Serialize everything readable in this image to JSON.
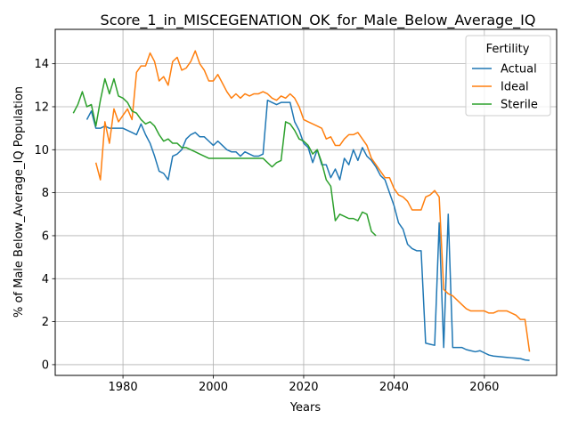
{
  "chart_data": {
    "type": "line",
    "title": "Score_1_in_MISCEGENATION_OK_for_Male_Below_Average_IQ",
    "xlabel": "Years",
    "ylabel": "% of Male Below_Average_IQ Population",
    "xlim": [
      1965,
      2076
    ],
    "ylim": [
      -0.5,
      15.6
    ],
    "xticks": [
      1980,
      2000,
      2020,
      2040,
      2060
    ],
    "yticks": [
      0,
      2,
      4,
      6,
      8,
      10,
      12,
      14
    ],
    "grid": true,
    "legend": {
      "title": "Fertility",
      "position": "top-right"
    },
    "series": [
      {
        "name": "Actual",
        "color": "#1f77b4",
        "x": [
          1972,
          1973,
          1974,
          1975,
          1976,
          1977,
          1978,
          1979,
          1980,
          1981,
          1982,
          1983,
          1984,
          1985,
          1986,
          1987,
          1988,
          1989,
          1990,
          1991,
          1992,
          1993,
          1994,
          1995,
          1996,
          1997,
          1998,
          1999,
          2000,
          2001,
          2002,
          2003,
          2004,
          2005,
          2006,
          2007,
          2008,
          2009,
          2010,
          2011,
          2012,
          2013,
          2014,
          2015,
          2016,
          2017,
          2018,
          2019,
          2020,
          2021,
          2022,
          2023,
          2024,
          2025,
          2026,
          2027,
          2028,
          2029,
          2030,
          2031,
          2032,
          2033,
          2034,
          2035,
          2036,
          2037,
          2038,
          2039,
          2040,
          2041,
          2042,
          2043,
          2044,
          2045,
          2046,
          2047,
          2048,
          2049,
          2050,
          2051,
          2052,
          2053,
          2054,
          2055,
          2056,
          2057,
          2058,
          2059,
          2060,
          2061,
          2062,
          2063,
          2064,
          2065,
          2066,
          2067,
          2068,
          2069,
          2070
        ],
        "y": [
          11.4,
          11.8,
          11.0,
          11.0,
          11.1,
          11.0,
          11.0,
          11.0,
          11.0,
          10.9,
          10.8,
          10.7,
          11.2,
          10.7,
          10.3,
          9.7,
          9.0,
          8.9,
          8.6,
          9.7,
          9.8,
          10.0,
          10.5,
          10.7,
          10.8,
          10.6,
          10.6,
          10.4,
          10.2,
          10.4,
          10.2,
          10.0,
          9.9,
          9.9,
          9.7,
          9.9,
          9.8,
          9.7,
          9.7,
          9.8,
          12.3,
          12.2,
          12.1,
          12.2,
          12.2,
          12.2,
          11.3,
          10.9,
          10.3,
          10.1,
          9.4,
          10.0,
          9.3,
          9.3,
          8.7,
          9.1,
          8.6,
          9.6,
          9.3,
          10.0,
          9.5,
          10.1,
          9.7,
          9.5,
          9.2,
          8.8,
          8.6,
          8.0,
          7.4,
          6.6,
          6.3,
          5.6,
          5.4,
          5.3,
          5.3,
          1.0,
          0.95,
          0.9,
          6.6,
          0.8,
          7.0,
          0.8,
          0.8,
          0.8,
          0.7,
          0.65,
          0.6,
          0.65,
          0.55,
          0.45,
          0.4,
          0.38,
          0.36,
          0.34,
          0.32,
          0.3,
          0.28,
          0.22,
          0.2
        ]
      },
      {
        "name": "Ideal",
        "color": "#ff7f0e",
        "x": [
          1974,
          1975,
          1976,
          1977,
          1978,
          1979,
          1980,
          1981,
          1982,
          1983,
          1984,
          1985,
          1986,
          1987,
          1988,
          1989,
          1990,
          1991,
          1992,
          1993,
          1994,
          1995,
          1996,
          1997,
          1998,
          1999,
          2000,
          2001,
          2002,
          2003,
          2004,
          2005,
          2006,
          2007,
          2008,
          2009,
          2010,
          2011,
          2012,
          2013,
          2014,
          2015,
          2016,
          2017,
          2018,
          2019,
          2020,
          2021,
          2022,
          2023,
          2024,
          2025,
          2026,
          2027,
          2028,
          2029,
          2030,
          2031,
          2032,
          2033,
          2034,
          2035,
          2036,
          2037,
          2038,
          2039,
          2040,
          2041,
          2042,
          2043,
          2044,
          2045,
          2046,
          2047,
          2048,
          2049,
          2050,
          2051,
          2052,
          2053,
          2054,
          2055,
          2056,
          2057,
          2058,
          2059,
          2060,
          2061,
          2062,
          2063,
          2064,
          2065,
          2066,
          2067,
          2068,
          2069,
          2070
        ],
        "y": [
          9.4,
          8.6,
          11.3,
          10.3,
          11.9,
          11.3,
          11.6,
          11.9,
          11.4,
          13.6,
          13.9,
          13.9,
          14.5,
          14.1,
          13.2,
          13.4,
          13.0,
          14.1,
          14.3,
          13.7,
          13.8,
          14.1,
          14.6,
          14.0,
          13.7,
          13.2,
          13.2,
          13.5,
          13.1,
          12.7,
          12.4,
          12.6,
          12.4,
          12.6,
          12.5,
          12.6,
          12.6,
          12.7,
          12.6,
          12.4,
          12.3,
          12.5,
          12.4,
          12.6,
          12.4,
          12.0,
          11.4,
          11.3,
          11.2,
          11.1,
          11.0,
          10.5,
          10.6,
          10.2,
          10.2,
          10.5,
          10.7,
          10.7,
          10.8,
          10.5,
          10.2,
          9.6,
          9.3,
          9.0,
          8.7,
          8.7,
          8.2,
          7.9,
          7.8,
          7.6,
          7.2,
          7.2,
          7.2,
          7.8,
          7.9,
          8.1,
          7.8,
          3.5,
          3.3,
          3.2,
          3.0,
          2.8,
          2.6,
          2.5,
          2.5,
          2.5,
          2.5,
          2.4,
          2.4,
          2.5,
          2.5,
          2.5,
          2.4,
          2.3,
          2.1,
          2.1,
          0.6
        ]
      },
      {
        "name": "Sterile",
        "color": "#2ca02c",
        "x": [
          1969,
          1970,
          1971,
          1972,
          1973,
          1974,
          1975,
          1976,
          1977,
          1978,
          1979,
          1980,
          1981,
          1982,
          1983,
          1984,
          1985,
          1986,
          1987,
          1988,
          1989,
          1990,
          1991,
          1992,
          1993,
          1994,
          1995,
          1996,
          1997,
          1998,
          1999,
          2000,
          2001,
          2002,
          2003,
          2004,
          2005,
          2006,
          2007,
          2008,
          2009,
          2010,
          2011,
          2012,
          2013,
          2014,
          2015,
          2016,
          2017,
          2018,
          2019,
          2020,
          2021,
          2022,
          2023,
          2024,
          2025,
          2026,
          2027,
          2028,
          2029,
          2030,
          2031,
          2032,
          2033,
          2034,
          2035,
          2036
        ],
        "y": [
          11.7,
          12.1,
          12.7,
          12.0,
          12.1,
          11.1,
          12.3,
          13.3,
          12.6,
          13.3,
          12.5,
          12.4,
          12.2,
          11.8,
          11.7,
          11.4,
          11.2,
          11.3,
          11.1,
          10.7,
          10.4,
          10.5,
          10.3,
          10.3,
          10.1,
          10.1,
          10.0,
          9.9,
          9.8,
          9.7,
          9.6,
          9.6,
          9.6,
          9.6,
          9.6,
          9.6,
          9.6,
          9.6,
          9.6,
          9.6,
          9.6,
          9.6,
          9.6,
          9.4,
          9.2,
          9.4,
          9.5,
          11.3,
          11.2,
          10.9,
          10.5,
          10.4,
          10.2,
          9.8,
          10.0,
          9.4,
          8.6,
          8.3,
          6.7,
          7.0,
          6.9,
          6.8,
          6.8,
          6.7,
          7.1,
          7.0,
          6.2,
          6.0
        ]
      }
    ]
  }
}
